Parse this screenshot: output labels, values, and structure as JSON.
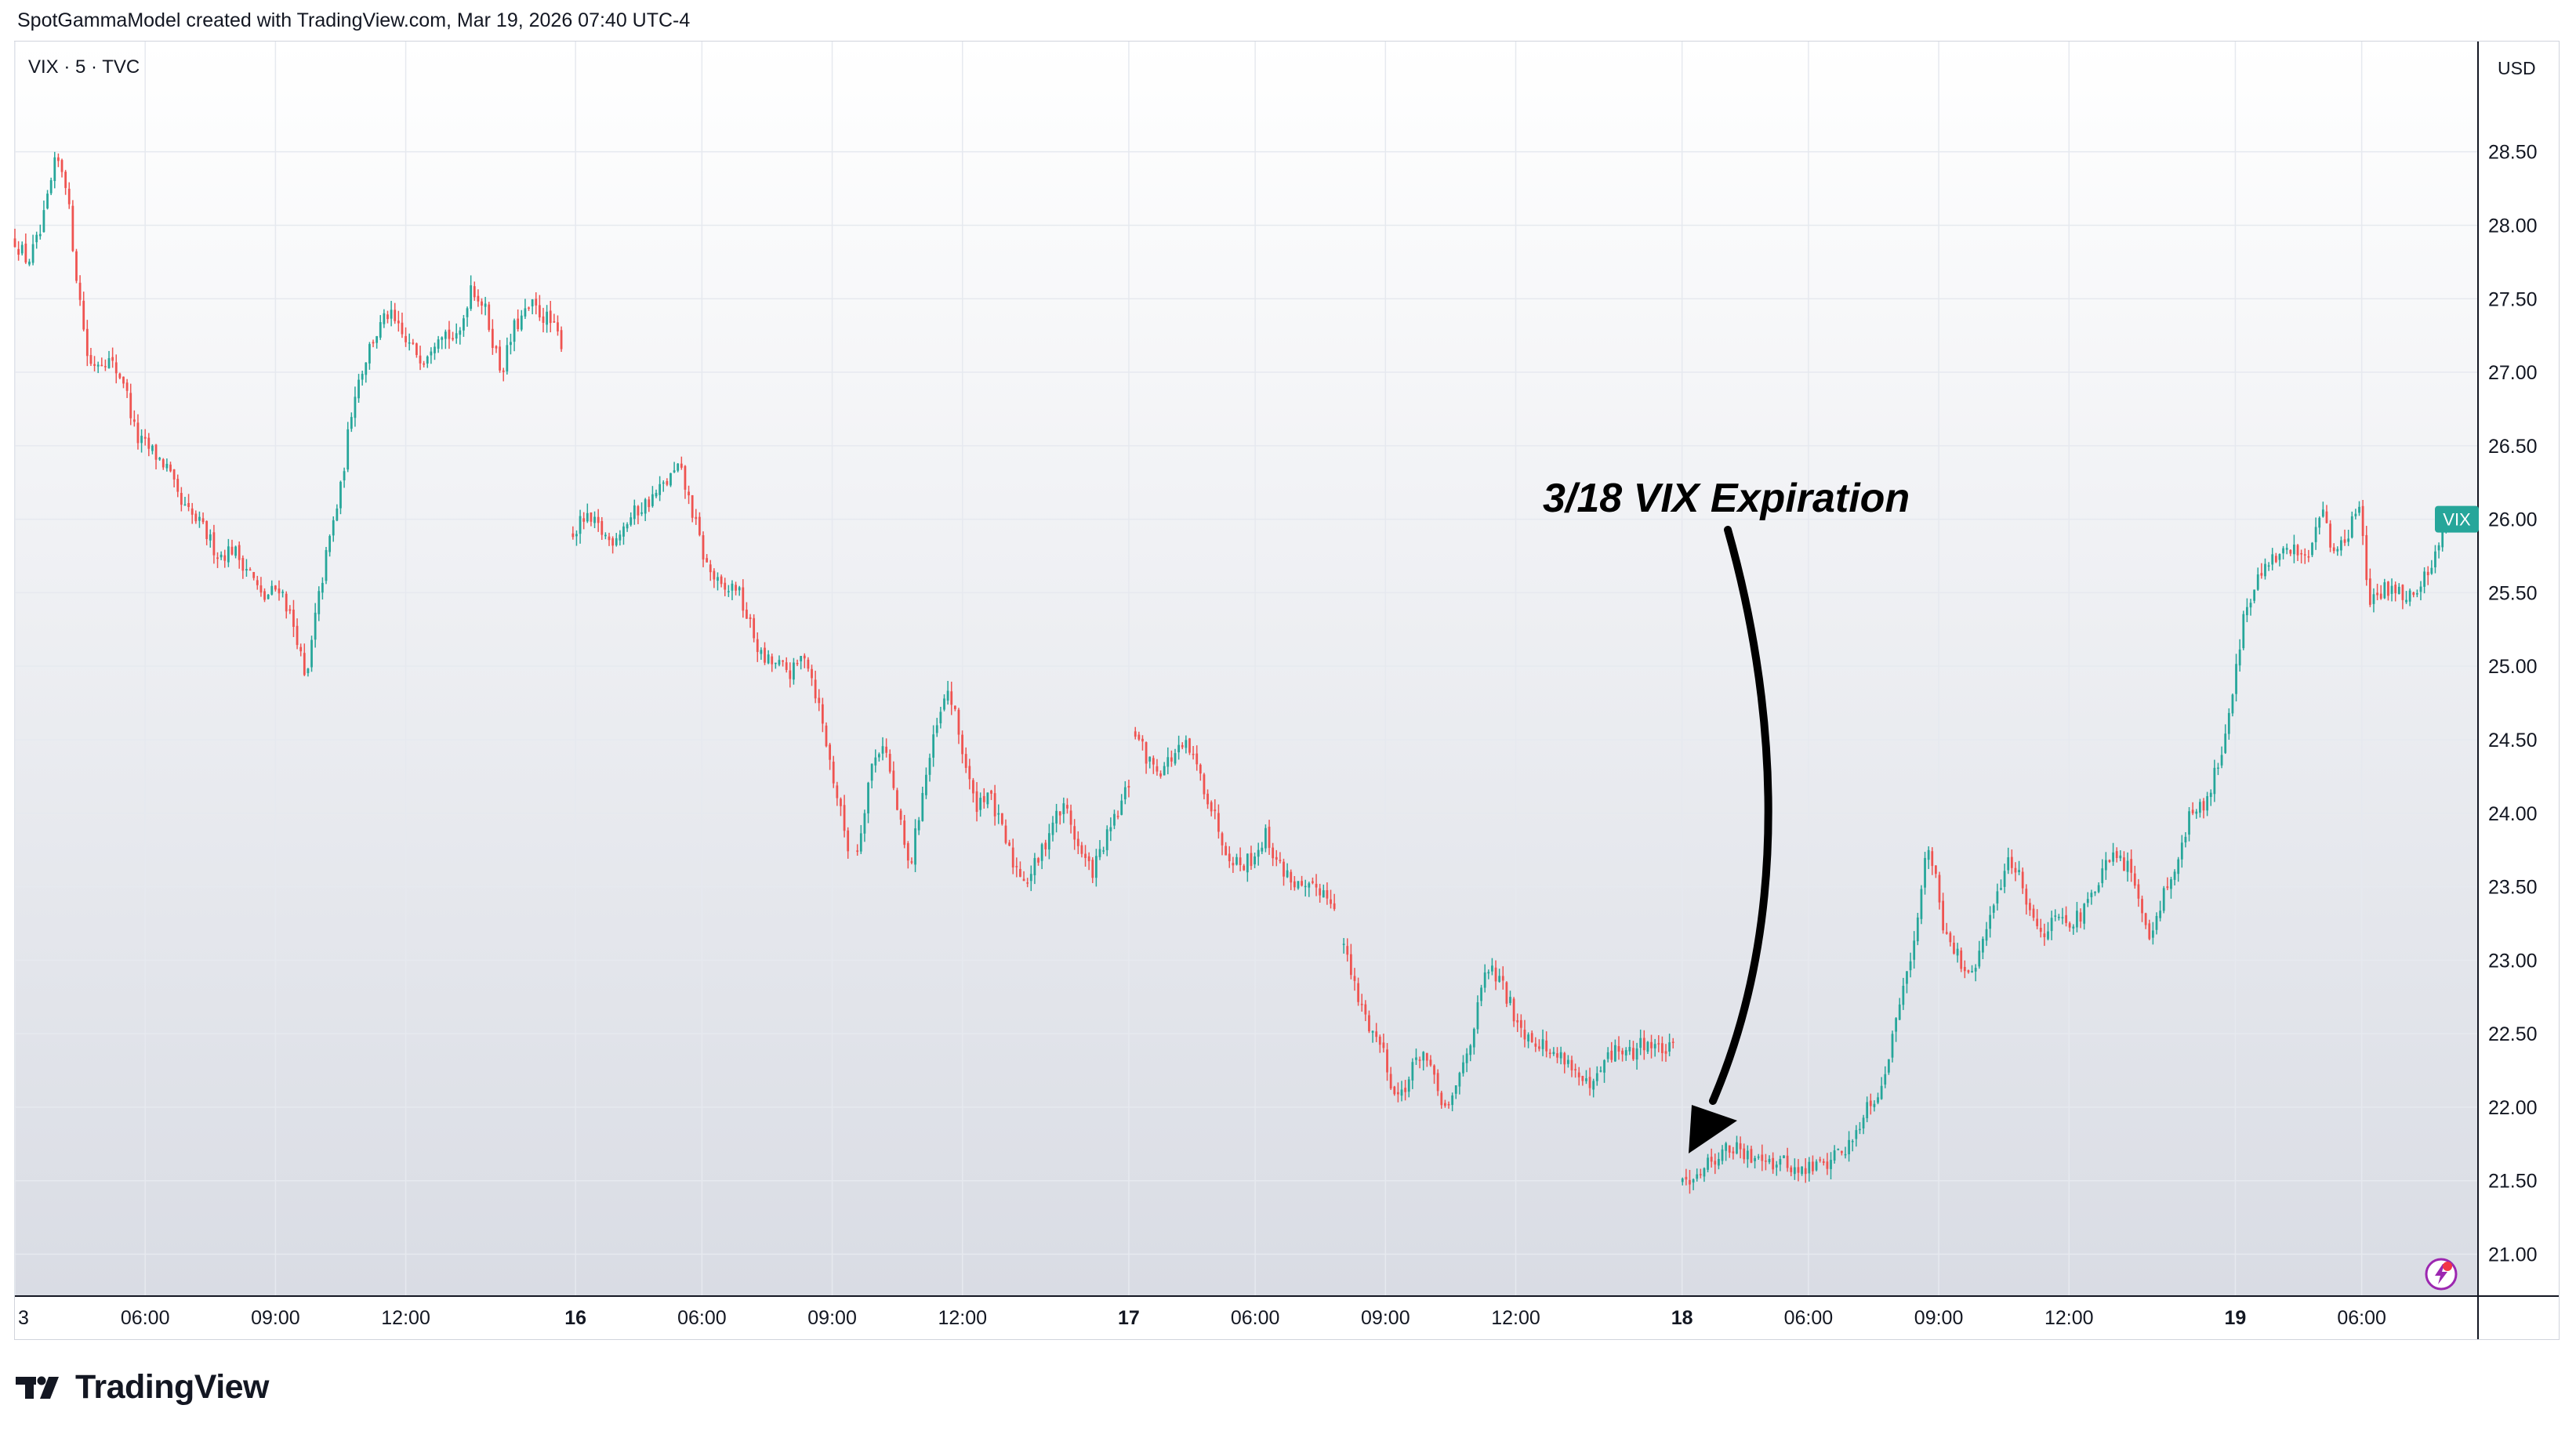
{
  "header": {
    "credit": "SpotGammaModel created with TradingView.com, Mar 19, 2026 07:40 UTC-4"
  },
  "chart_header": {
    "symbol": "VIX · 5 · TVC",
    "currency": "USD"
  },
  "annotation": {
    "text": "3/18 VIX Expiration"
  },
  "footer": {
    "brand": "TradingView"
  },
  "colors": {
    "up": "#26a69a",
    "down": "#ef5350",
    "price_tag": "#26a69a",
    "grid": "#e6e9ef",
    "background_top": "#ffffff",
    "background_bottom": "#d9dce4",
    "annotation": "#000000"
  },
  "icons": {
    "annotation_arrow": "curved-arrow-down",
    "bottom_right": "lightning-icon",
    "logo": "tradingview-logo-icon"
  },
  "chart_data": {
    "type": "candlestick",
    "title": "",
    "xlabel": "",
    "ylabel": "",
    "ylim": [
      20.72,
      29.25
    ],
    "y_ticks": [
      "21.00",
      "21.50",
      "22.00",
      "22.50",
      "23.00",
      "23.50",
      "24.00",
      "24.50",
      "25.00",
      "25.50",
      "26.00",
      "26.50",
      "27.00",
      "27.50",
      "28.00",
      "28.50"
    ],
    "x_ticks": [
      {
        "t": 0.0,
        "label": "3",
        "bold": false
      },
      {
        "t": 3.0,
        "label": "06:00",
        "bold": false
      },
      {
        "t": 6.0,
        "label": "09:00",
        "bold": false
      },
      {
        "t": 9.0,
        "label": "12:00",
        "bold": false
      },
      {
        "t": 12.91,
        "label": "16",
        "bold": true
      },
      {
        "t": 15.82,
        "label": "06:00",
        "bold": false
      },
      {
        "t": 18.82,
        "label": "09:00",
        "bold": false
      },
      {
        "t": 21.82,
        "label": "12:00",
        "bold": false
      },
      {
        "t": 25.65,
        "label": "17",
        "bold": true
      },
      {
        "t": 28.56,
        "label": "06:00",
        "bold": false
      },
      {
        "t": 31.56,
        "label": "09:00",
        "bold": false
      },
      {
        "t": 34.56,
        "label": "12:00",
        "bold": false
      },
      {
        "t": 38.39,
        "label": "18",
        "bold": true
      },
      {
        "t": 41.3,
        "label": "06:00",
        "bold": false
      },
      {
        "t": 44.3,
        "label": "09:00",
        "bold": false
      },
      {
        "t": 47.3,
        "label": "12:00",
        "bold": false
      },
      {
        "t": 51.13,
        "label": "19",
        "bold": true
      },
      {
        "t": 54.04,
        "label": "06:00",
        "bold": false
      }
    ],
    "x_range": [
      0,
      56.7
    ],
    "interval": "5",
    "last_price_label": "VIX",
    "last_price": 26.0,
    "series": [
      {
        "name": "VIX",
        "start": 0.0,
        "end": 12.6,
        "points": [
          [
            0.0,
            27.9
          ],
          [
            0.3,
            27.75
          ],
          [
            0.6,
            27.95
          ],
          [
            0.95,
            28.45
          ],
          [
            1.15,
            28.35
          ],
          [
            1.4,
            27.7
          ],
          [
            1.7,
            27.05
          ],
          [
            2.1,
            27.1
          ],
          [
            2.5,
            26.95
          ],
          [
            2.8,
            26.55
          ],
          [
            3.2,
            26.45
          ],
          [
            3.5,
            26.35
          ],
          [
            3.8,
            26.1
          ],
          [
            4.3,
            25.95
          ],
          [
            4.7,
            25.75
          ],
          [
            5.0,
            25.8
          ],
          [
            5.4,
            25.65
          ],
          [
            5.7,
            25.45
          ],
          [
            6.1,
            25.55
          ],
          [
            6.5,
            25.2
          ],
          [
            6.7,
            24.85
          ],
          [
            6.9,
            25.3
          ],
          [
            7.2,
            25.8
          ],
          [
            7.5,
            26.2
          ],
          [
            7.8,
            26.85
          ],
          [
            8.2,
            27.2
          ],
          [
            8.6,
            27.4
          ],
          [
            9.0,
            27.2
          ],
          [
            9.4,
            27.1
          ],
          [
            9.8,
            27.3
          ],
          [
            10.2,
            27.2
          ],
          [
            10.5,
            27.6
          ],
          [
            10.8,
            27.45
          ],
          [
            11.2,
            27.0
          ],
          [
            11.5,
            27.3
          ],
          [
            11.9,
            27.45
          ],
          [
            12.3,
            27.35
          ],
          [
            12.6,
            27.2
          ]
        ]
      },
      {
        "name": "VIX",
        "start": 12.85,
        "end": 19.2,
        "points": [
          [
            12.85,
            25.9
          ],
          [
            13.1,
            26.0
          ],
          [
            13.4,
            25.95
          ],
          [
            13.7,
            25.85
          ],
          [
            14.0,
            25.95
          ],
          [
            14.3,
            26.05
          ],
          [
            14.7,
            26.15
          ],
          [
            15.0,
            26.25
          ],
          [
            15.3,
            26.35
          ],
          [
            15.6,
            26.05
          ],
          [
            15.9,
            25.7
          ],
          [
            16.3,
            25.5
          ],
          [
            16.6,
            25.55
          ],
          [
            16.9,
            25.3
          ],
          [
            17.2,
            25.05
          ],
          [
            17.6,
            25.0
          ],
          [
            17.9,
            24.95
          ],
          [
            18.2,
            25.1
          ],
          [
            18.5,
            24.75
          ],
          [
            18.8,
            24.3
          ],
          [
            19.2,
            23.75
          ]
        ]
      },
      {
        "name": "VIX",
        "start": 19.4,
        "end": 25.65,
        "points": [
          [
            19.4,
            23.75
          ],
          [
            19.7,
            24.3
          ],
          [
            20.0,
            24.5
          ],
          [
            20.3,
            24.05
          ],
          [
            20.6,
            23.6
          ],
          [
            20.9,
            24.15
          ],
          [
            21.2,
            24.55
          ],
          [
            21.5,
            24.85
          ],
          [
            21.8,
            24.45
          ],
          [
            22.1,
            24.05
          ],
          [
            22.4,
            24.15
          ],
          [
            22.7,
            23.9
          ],
          [
            23.0,
            23.65
          ],
          [
            23.3,
            23.55
          ],
          [
            23.6,
            23.7
          ],
          [
            23.9,
            23.95
          ],
          [
            24.2,
            24.05
          ],
          [
            24.5,
            23.75
          ],
          [
            24.8,
            23.6
          ],
          [
            25.1,
            23.8
          ],
          [
            25.4,
            24.0
          ],
          [
            25.65,
            24.2
          ]
        ]
      },
      {
        "name": "VIX",
        "start": 25.8,
        "end": 30.4,
        "points": [
          [
            25.8,
            24.55
          ],
          [
            26.1,
            24.35
          ],
          [
            26.4,
            24.3
          ],
          [
            26.7,
            24.4
          ],
          [
            27.0,
            24.45
          ],
          [
            27.3,
            24.25
          ],
          [
            27.6,
            24.0
          ],
          [
            27.9,
            23.75
          ],
          [
            28.2,
            23.65
          ],
          [
            28.5,
            23.7
          ],
          [
            28.8,
            23.85
          ],
          [
            29.1,
            23.65
          ],
          [
            29.4,
            23.55
          ],
          [
            29.7,
            23.45
          ],
          [
            30.0,
            23.5
          ],
          [
            30.4,
            23.4
          ]
        ]
      },
      {
        "name": "VIX",
        "start": 30.6,
        "end": 38.2,
        "points": [
          [
            30.6,
            23.1
          ],
          [
            30.9,
            22.75
          ],
          [
            31.2,
            22.55
          ],
          [
            31.5,
            22.4
          ],
          [
            31.8,
            22.05
          ],
          [
            32.1,
            22.2
          ],
          [
            32.4,
            22.4
          ],
          [
            32.7,
            22.15
          ],
          [
            33.0,
            21.95
          ],
          [
            33.3,
            22.25
          ],
          [
            33.6,
            22.55
          ],
          [
            33.9,
            22.95
          ],
          [
            34.2,
            22.85
          ],
          [
            34.5,
            22.65
          ],
          [
            34.8,
            22.5
          ],
          [
            35.1,
            22.45
          ],
          [
            35.4,
            22.35
          ],
          [
            35.7,
            22.35
          ],
          [
            36.0,
            22.2
          ],
          [
            36.3,
            22.1
          ],
          [
            36.6,
            22.3
          ],
          [
            36.9,
            22.4
          ],
          [
            37.2,
            22.35
          ],
          [
            37.5,
            22.45
          ],
          [
            37.8,
            22.4
          ],
          [
            38.2,
            22.38
          ]
        ]
      },
      {
        "name": "VIX",
        "start": 38.4,
        "end": 56.0,
        "points": [
          [
            38.4,
            21.5
          ],
          [
            38.7,
            21.55
          ],
          [
            39.0,
            21.62
          ],
          [
            39.3,
            21.7
          ],
          [
            39.6,
            21.72
          ],
          [
            39.9,
            21.65
          ],
          [
            40.2,
            21.7
          ],
          [
            40.5,
            21.62
          ],
          [
            40.8,
            21.62
          ],
          [
            41.1,
            21.55
          ],
          [
            41.4,
            21.6
          ],
          [
            41.7,
            21.62
          ],
          [
            42.0,
            21.7
          ],
          [
            42.3,
            21.75
          ],
          [
            42.6,
            22.0
          ],
          [
            42.9,
            22.1
          ],
          [
            43.2,
            22.4
          ],
          [
            43.5,
            22.9
          ],
          [
            43.8,
            23.2
          ],
          [
            44.0,
            23.75
          ],
          [
            44.2,
            23.65
          ],
          [
            44.4,
            23.25
          ],
          [
            44.7,
            23.05
          ],
          [
            45.0,
            22.85
          ],
          [
            45.3,
            23.1
          ],
          [
            45.6,
            23.4
          ],
          [
            45.9,
            23.7
          ],
          [
            46.2,
            23.55
          ],
          [
            46.5,
            23.25
          ],
          [
            46.8,
            23.2
          ],
          [
            47.1,
            23.35
          ],
          [
            47.4,
            23.25
          ],
          [
            47.7,
            23.35
          ],
          [
            48.0,
            23.55
          ],
          [
            48.3,
            23.7
          ],
          [
            48.6,
            23.65
          ],
          [
            48.9,
            23.45
          ],
          [
            49.2,
            23.15
          ],
          [
            49.5,
            23.5
          ],
          [
            49.8,
            23.65
          ],
          [
            50.1,
            24.0
          ],
          [
            50.4,
            24.05
          ],
          [
            50.7,
            24.3
          ],
          [
            51.0,
            24.7
          ],
          [
            51.3,
            25.3
          ],
          [
            51.6,
            25.55
          ],
          [
            51.9,
            25.7
          ],
          [
            52.2,
            25.75
          ],
          [
            52.5,
            25.8
          ],
          [
            52.8,
            25.75
          ],
          [
            53.1,
            26.1
          ],
          [
            53.4,
            25.75
          ],
          [
            53.7,
            25.9
          ],
          [
            54.0,
            26.1
          ],
          [
            54.2,
            25.4
          ],
          [
            54.5,
            25.5
          ],
          [
            54.8,
            25.55
          ],
          [
            55.1,
            25.45
          ],
          [
            55.4,
            25.55
          ],
          [
            55.7,
            25.75
          ],
          [
            56.0,
            26.0
          ]
        ]
      }
    ]
  }
}
